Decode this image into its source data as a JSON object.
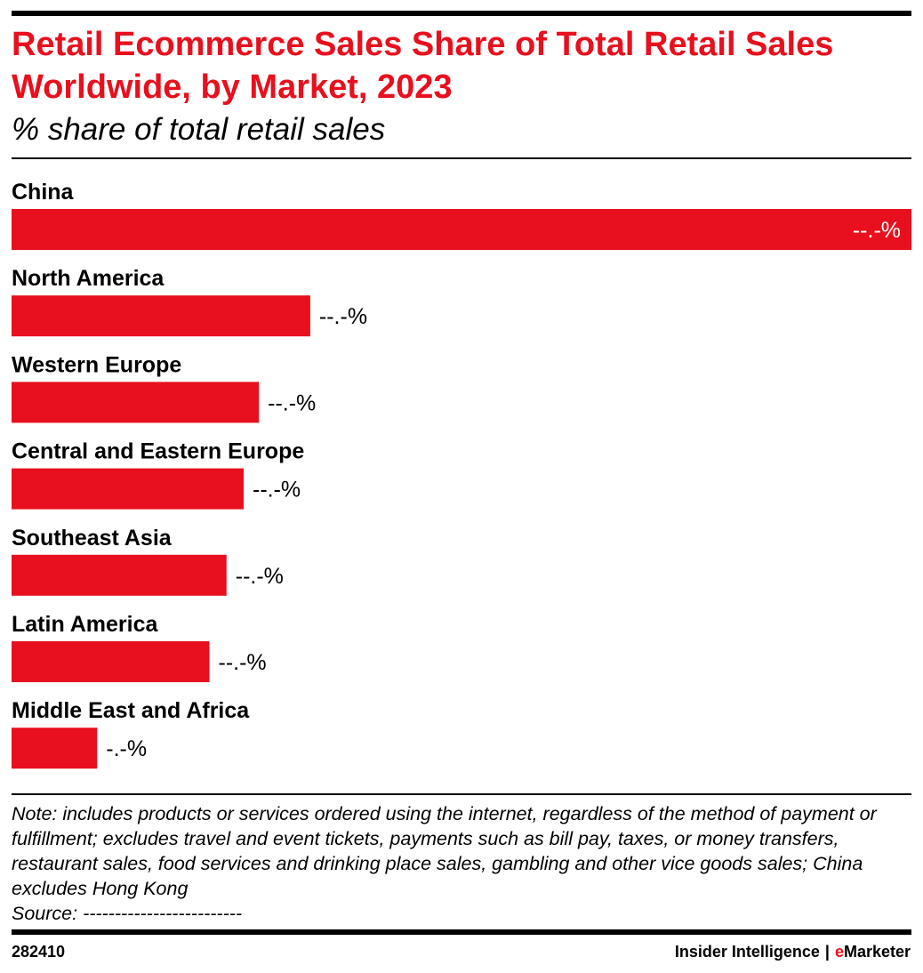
{
  "title": "Retail Ecommerce Sales Share of Total Retail Sales Worldwide, by Market, 2023",
  "subtitle": "% share of total retail sales",
  "note": "Note: includes products or services ordered using the internet, regardless of the method of payment or fulfillment; excludes travel and event tickets, payments such as bill pay, taxes, or money transfers, restaurant sales, food services and drinking place sales, gambling and other vice goods sales; China excludes Hong Kong",
  "source": "Source: -------------------------",
  "footer": {
    "id": "282410",
    "brand_left": "Insider Intelligence",
    "separator": "|",
    "brand_accent_e": "e",
    "brand_rest": "Marketer"
  },
  "colors": {
    "bar": "#e8101e",
    "title": "#e8101e"
  },
  "chart_data": {
    "type": "bar",
    "orientation": "horizontal",
    "title": "Retail Ecommerce Sales Share of Total Retail Sales Worldwide, by Market, 2023",
    "subtitle": "% share of total retail sales",
    "categories": [
      "China",
      "North America",
      "Western Europe",
      "Central and Eastern Europe",
      "Southeast Asia",
      "Latin America",
      "Middle East and Africa"
    ],
    "values": [
      47.3,
      15.7,
      13.0,
      12.2,
      11.3,
      10.4,
      4.5
    ],
    "value_labels": [
      "--.-%",
      "--.-%",
      "--.-%",
      "--.-%",
      "--.-%",
      "--.-%",
      "-.-%"
    ],
    "xlim": [
      0,
      47.3
    ],
    "grid": false,
    "legend": "none"
  }
}
